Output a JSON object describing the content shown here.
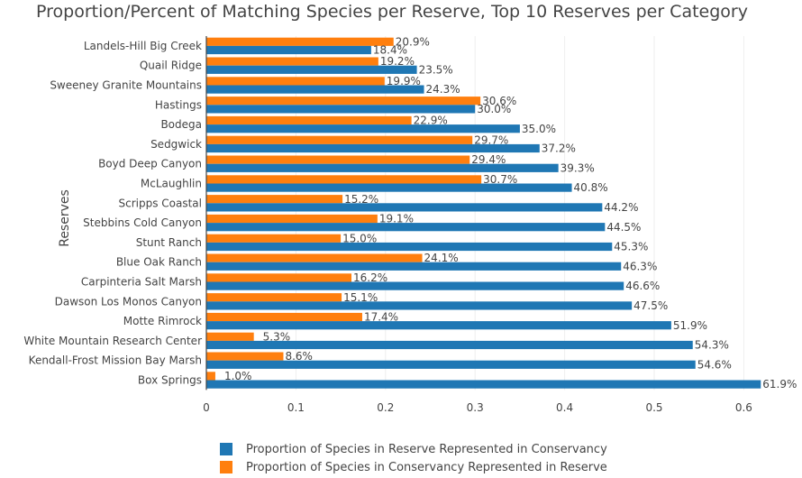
{
  "chart_data": {
    "type": "bar",
    "orientation": "horizontal",
    "title": "Proportion/Percent of Matching Species per Reserve, Top 10 Reserves per Category",
    "ylabel": "Reserves",
    "xlabel": "",
    "xlim": [
      0,
      0.62
    ],
    "xticks": [
      "0",
      "0.1",
      "0.2",
      "0.3",
      "0.4",
      "0.5",
      "0.6"
    ],
    "grid": true,
    "legend_position": "bottom",
    "categories": [
      "Landels-Hill Big Creek",
      "Quail Ridge",
      "Sweeney Granite Mountains",
      "Hastings",
      "Bodega",
      "Sedgwick",
      "Boyd Deep Canyon",
      "McLaughlin",
      "Scripps Coastal",
      "Stebbins Cold Canyon",
      "Stunt Ranch",
      "Blue Oak Ranch",
      "Carpinteria Salt Marsh",
      "Dawson Los Monos Canyon",
      "Motte Rimrock",
      "White Mountain Research Center",
      "Kendall-Frost Mission Bay Marsh",
      "Box Springs"
    ],
    "series": [
      {
        "name": "Proportion of Species in Reserve Represented in Conservancy",
        "color": "#1f77b4",
        "values": [
          0.184,
          0.235,
          0.243,
          0.3,
          0.35,
          0.372,
          0.393,
          0.408,
          0.442,
          0.445,
          0.453,
          0.463,
          0.466,
          0.475,
          0.519,
          0.543,
          0.546,
          0.619
        ],
        "labels": [
          "18.4%",
          "23.5%",
          "24.3%",
          "30.0%",
          "35.0%",
          "37.2%",
          "39.3%",
          "40.8%",
          "44.2%",
          "44.5%",
          "45.3%",
          "46.3%",
          "46.6%",
          "47.5%",
          "51.9%",
          "54.3%",
          "54.6%",
          "61.9%"
        ]
      },
      {
        "name": "Proportion of Species in Conservancy Represented in Reserve",
        "color": "#ff7f0e",
        "values": [
          0.209,
          0.192,
          0.199,
          0.306,
          0.229,
          0.297,
          0.294,
          0.307,
          0.152,
          0.191,
          0.15,
          0.241,
          0.162,
          0.151,
          0.174,
          0.053,
          0.086,
          0.01
        ],
        "labels": [
          "20.9%",
          "19.2%",
          "19.9%",
          "30.6%",
          "22.9%",
          "29.7%",
          "29.4%",
          "30.7%",
          "15.2%",
          "19.1%",
          "15.0%",
          "24.1%",
          "16.2%",
          "15.1%",
          "17.4%",
          "5.3%",
          "8.6%",
          "1.0%"
        ]
      }
    ]
  }
}
